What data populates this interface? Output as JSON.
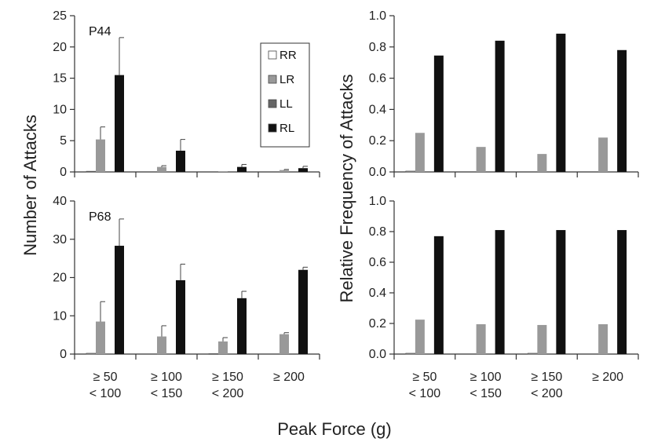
{
  "figure": {
    "xlabel": "Peak Force (g)",
    "ylabel_left": "Number of Attacks",
    "ylabel_right": "Relative Frequency of Attacks"
  },
  "legend": {
    "entries": [
      {
        "label": "RR",
        "color": "#ffffff"
      },
      {
        "label": "LR",
        "color": "#999999"
      },
      {
        "label": "LL",
        "color": "#666666"
      },
      {
        "label": "RL",
        "color": "#111111"
      }
    ]
  },
  "chart_data": [
    {
      "id": "top-left",
      "type": "bar",
      "panel_label": "P44",
      "categories": [
        [
          "≥ 50",
          "< 100"
        ],
        [
          "≥ 100",
          "< 150"
        ],
        [
          "≥ 150",
          "< 200"
        ],
        [
          "≥ 200"
        ]
      ],
      "series": [
        {
          "name": "RR",
          "values": [
            0.1,
            0,
            0,
            0
          ],
          "errors": [
            0,
            0,
            0,
            0
          ]
        },
        {
          "name": "LR",
          "values": [
            5.2,
            0.8,
            0.1,
            0.3
          ],
          "errors": [
            2.0,
            0.2,
            0,
            0.1
          ]
        },
        {
          "name": "LL",
          "values": [
            0,
            0,
            0,
            0
          ],
          "errors": [
            0,
            0,
            0,
            0
          ]
        },
        {
          "name": "RL",
          "values": [
            15.5,
            3.4,
            0.8,
            0.6
          ],
          "errors": [
            6.0,
            1.8,
            0.4,
            0.3
          ]
        }
      ],
      "ylim": [
        0,
        25
      ],
      "yticks": [
        "0",
        "5",
        "10",
        "15",
        "20",
        "25"
      ],
      "show_xticklabels": false,
      "legend": true
    },
    {
      "id": "top-right",
      "type": "bar",
      "categories": [
        [
          "≥ 50",
          "< 100"
        ],
        [
          "≥ 100",
          "< 150"
        ],
        [
          "≥ 150",
          "< 200"
        ],
        [
          "≥ 200"
        ]
      ],
      "series": [
        {
          "name": "RR",
          "values": [
            0.005,
            0,
            0,
            0
          ]
        },
        {
          "name": "LR",
          "values": [
            0.25,
            0.16,
            0.115,
            0.22
          ]
        },
        {
          "name": "LL",
          "values": [
            0,
            0,
            0,
            0
          ]
        },
        {
          "name": "RL",
          "values": [
            0.745,
            0.84,
            0.885,
            0.78
          ]
        }
      ],
      "ylim": [
        0,
        1
      ],
      "yticks": [
        "0.0",
        "0.2",
        "0.4",
        "0.6",
        "0.8",
        "1.0"
      ],
      "show_xticklabels": false,
      "legend": false
    },
    {
      "id": "bottom-left",
      "type": "bar",
      "panel_label": "P68",
      "categories": [
        [
          "≥ 50",
          "< 100"
        ],
        [
          "≥ 100",
          "< 150"
        ],
        [
          "≥ 150",
          "< 200"
        ],
        [
          "≥ 200"
        ]
      ],
      "series": [
        {
          "name": "RR",
          "values": [
            0.2,
            0,
            0.1,
            0
          ],
          "errors": [
            0,
            0,
            0,
            0
          ]
        },
        {
          "name": "LR",
          "values": [
            8.5,
            4.6,
            3.3,
            5.2
          ],
          "errors": [
            5.2,
            2.8,
            1.0,
            0.4
          ]
        },
        {
          "name": "LL",
          "values": [
            0,
            0,
            0,
            0
          ],
          "errors": [
            0,
            0,
            0,
            0
          ]
        },
        {
          "name": "RL",
          "values": [
            28.3,
            19.3,
            14.6,
            22.0
          ],
          "errors": [
            7.0,
            4.2,
            1.8,
            0.7
          ]
        }
      ],
      "ylim": [
        0,
        40
      ],
      "yticks": [
        "0",
        "10",
        "20",
        "30",
        "40"
      ],
      "show_xticklabels": true,
      "legend": false
    },
    {
      "id": "bottom-right",
      "type": "bar",
      "categories": [
        [
          "≥ 50",
          "< 100"
        ],
        [
          "≥ 100",
          "< 150"
        ],
        [
          "≥ 150",
          "< 200"
        ],
        [
          "≥ 200"
        ]
      ],
      "series": [
        {
          "name": "RR",
          "values": [
            0.005,
            0,
            0.005,
            0
          ]
        },
        {
          "name": "LR",
          "values": [
            0.225,
            0.195,
            0.19,
            0.195
          ]
        },
        {
          "name": "LL",
          "values": [
            0,
            0,
            0,
            0
          ]
        },
        {
          "name": "RL",
          "values": [
            0.77,
            0.81,
            0.81,
            0.81
          ]
        }
      ],
      "ylim": [
        0,
        1
      ],
      "yticks": [
        "0.0",
        "0.2",
        "0.4",
        "0.6",
        "0.8",
        "1.0"
      ],
      "show_xticklabels": true,
      "legend": false
    }
  ]
}
